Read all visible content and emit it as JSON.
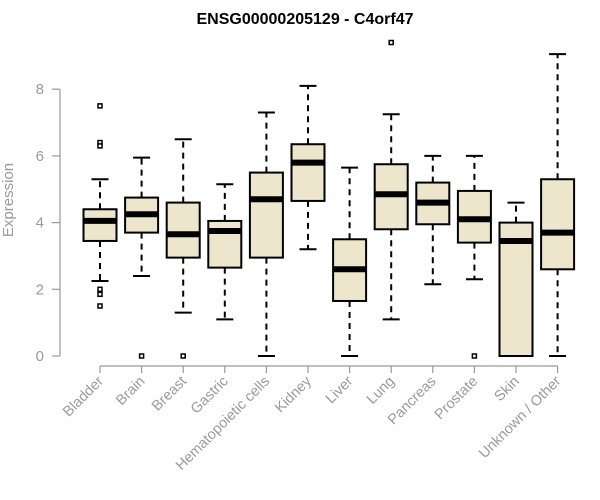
{
  "chart_data": {
    "type": "box",
    "title": "ENSG00000205129 - C4orf47",
    "xlabel": "",
    "ylabel": "Expression",
    "ylim": [
      0,
      9.4
    ],
    "yticks": [
      0,
      2,
      4,
      6,
      8
    ],
    "grid": false,
    "legend": "none",
    "colors": {
      "box_fill": "#ede6cc",
      "stroke": "#000000",
      "axis_text": "#9a9a9a"
    },
    "categories": [
      "Bladder",
      "Brain",
      "Breast",
      "Gastric",
      "Hematopoietic cells",
      "Kidney",
      "Liver",
      "Lung",
      "Pancreas",
      "Prostate",
      "Skin",
      "Unknown / Other"
    ],
    "boxes": [
      {
        "category": "Bladder",
        "whisker_low": 2.25,
        "q1": 3.45,
        "median": 4.05,
        "q3": 4.4,
        "whisker_high": 5.3,
        "outliers": [
          7.5,
          6.4,
          6.3,
          2.0,
          1.85,
          1.5
        ]
      },
      {
        "category": "Brain",
        "whisker_low": 2.4,
        "q1": 3.7,
        "median": 4.25,
        "q3": 4.75,
        "whisker_high": 5.95,
        "outliers": [
          0.0
        ]
      },
      {
        "category": "Breast",
        "whisker_low": 1.3,
        "q1": 2.95,
        "median": 3.65,
        "q3": 4.6,
        "whisker_high": 6.5,
        "outliers": [
          0.0
        ]
      },
      {
        "category": "Gastric",
        "whisker_low": 1.1,
        "q1": 2.65,
        "median": 3.75,
        "q3": 4.05,
        "whisker_high": 5.15,
        "outliers": []
      },
      {
        "category": "Hematopoietic cells",
        "whisker_low": 0.0,
        "q1": 2.95,
        "median": 4.7,
        "q3": 5.5,
        "whisker_high": 7.3,
        "outliers": []
      },
      {
        "category": "Kidney",
        "whisker_low": 3.2,
        "q1": 4.65,
        "median": 5.8,
        "q3": 6.35,
        "whisker_high": 8.1,
        "outliers": []
      },
      {
        "category": "Liver",
        "whisker_low": 0.0,
        "q1": 1.65,
        "median": 2.6,
        "q3": 3.5,
        "whisker_high": 5.65,
        "outliers": []
      },
      {
        "category": "Lung",
        "whisker_low": 1.1,
        "q1": 3.8,
        "median": 4.85,
        "q3": 5.75,
        "whisker_high": 7.25,
        "outliers": [
          9.4
        ]
      },
      {
        "category": "Pancreas",
        "whisker_low": 2.15,
        "q1": 3.95,
        "median": 4.6,
        "q3": 5.2,
        "whisker_high": 6.0,
        "outliers": []
      },
      {
        "category": "Prostate",
        "whisker_low": 2.3,
        "q1": 3.4,
        "median": 4.1,
        "q3": 4.95,
        "whisker_high": 6.0,
        "outliers": [
          0.0
        ]
      },
      {
        "category": "Skin",
        "whisker_low": 0.0,
        "q1": 0.0,
        "median": 3.45,
        "q3": 4.0,
        "whisker_high": 4.6,
        "outliers": []
      },
      {
        "category": "Unknown / Other",
        "whisker_low": 0.0,
        "q1": 2.6,
        "median": 3.7,
        "q3": 5.3,
        "whisker_high": 9.05,
        "outliers": []
      }
    ]
  }
}
